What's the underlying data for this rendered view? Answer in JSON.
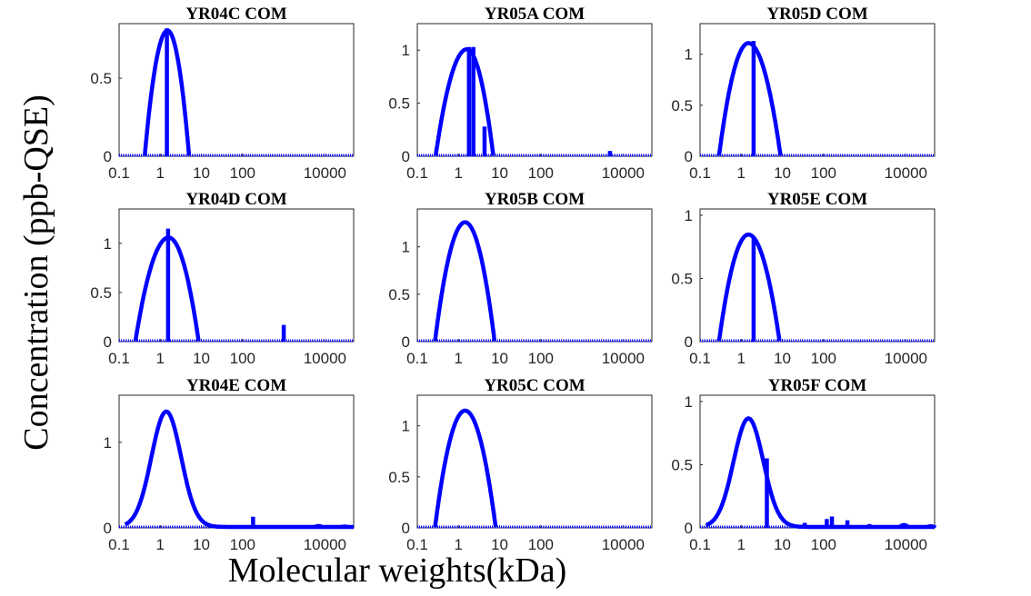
{
  "figure": {
    "ylabel": "Concentration (ppb-QSE)",
    "xlabel": "Molecular weights(kDa)",
    "series_color": "#0000ff"
  },
  "chart_data": [
    {
      "type": "line",
      "title": "YR04C COM",
      "xscale": "log",
      "xlim": [
        0.1,
        50000
      ],
      "xticks": [
        "0.1",
        "1",
        "10",
        "100",
        "10000"
      ],
      "ylim": [
        0,
        0.85
      ],
      "yticks": [
        {
          "v": 0,
          "label": "0"
        },
        {
          "v": 0.5,
          "label": "0.5"
        }
      ],
      "curve": {
        "mode": "quad",
        "peak_x": 1.5,
        "peak_y": 0.8,
        "start_x": 0.42,
        "end_x": 5.0
      },
      "spikes": [
        {
          "x": 1.45,
          "y": 0.82
        }
      ],
      "tail": []
    },
    {
      "type": "line",
      "title": "YR05A COM",
      "xscale": "log",
      "xlim": [
        0.1,
        50000
      ],
      "xticks": [
        "0.1",
        "1",
        "10",
        "100",
        "10000"
      ],
      "ylim": [
        0,
        1.25
      ],
      "yticks": [
        {
          "v": 0,
          "label": "0"
        },
        {
          "v": 0.5,
          "label": "0.5"
        },
        {
          "v": 1,
          "label": "1"
        }
      ],
      "curve": {
        "mode": "quad",
        "peak_x": 1.6,
        "peak_y": 1.0,
        "start_x": 0.28,
        "end_x": 7.0
      },
      "spikes": [
        {
          "x": 1.8,
          "y": 1.03
        },
        {
          "x": 2.3,
          "y": 1.03
        },
        {
          "x": 4.3,
          "y": 0.28
        },
        {
          "x": 4800,
          "y": 0.05
        }
      ],
      "tail": []
    },
    {
      "type": "line",
      "title": "YR05D COM",
      "xscale": "log",
      "xlim": [
        0.1,
        50000
      ],
      "xticks": [
        "0.1",
        "1",
        "10",
        "100",
        "10000"
      ],
      "ylim": [
        0,
        1.3
      ],
      "yticks": [
        {
          "v": 0,
          "label": "0"
        },
        {
          "v": 0.5,
          "label": "0.5"
        },
        {
          "v": 1,
          "label": "1"
        }
      ],
      "curve": {
        "mode": "quad",
        "peak_x": 1.5,
        "peak_y": 1.1,
        "start_x": 0.29,
        "end_x": 9.0
      },
      "spikes": [
        {
          "x": 2.0,
          "y": 1.13
        }
      ],
      "tail": []
    },
    {
      "type": "line",
      "title": "YR04D COM",
      "xscale": "log",
      "xlim": [
        0.1,
        50000
      ],
      "xticks": [
        "0.1",
        "1",
        "10",
        "100",
        "10000"
      ],
      "ylim": [
        0,
        1.35
      ],
      "yticks": [
        {
          "v": 0,
          "label": "0"
        },
        {
          "v": 0.5,
          "label": "0.5"
        },
        {
          "v": 1,
          "label": "1"
        }
      ],
      "curve": {
        "mode": "quad",
        "peak_x": 1.6,
        "peak_y": 1.05,
        "start_x": 0.25,
        "end_x": 8.5
      },
      "spikes": [
        {
          "x": 1.55,
          "y": 1.15
        },
        {
          "x": 1000,
          "y": 0.17
        }
      ],
      "tail": []
    },
    {
      "type": "line",
      "title": "YR05B COM",
      "xscale": "log",
      "xlim": [
        0.1,
        50000
      ],
      "xticks": [
        "0.1",
        "1",
        "10",
        "100",
        "10000"
      ],
      "ylim": [
        0,
        1.4
      ],
      "yticks": [
        {
          "v": 0,
          "label": "0"
        },
        {
          "v": 0.5,
          "label": "0.5"
        },
        {
          "v": 1,
          "label": "1"
        }
      ],
      "curve": {
        "mode": "quad",
        "peak_x": 1.45,
        "peak_y": 1.25,
        "start_x": 0.27,
        "end_x": 7.5
      },
      "spikes": [],
      "tail": []
    },
    {
      "type": "line",
      "title": "YR05E COM",
      "xscale": "log",
      "xlim": [
        0.1,
        50000
      ],
      "xticks": [
        "0.1",
        "1",
        "10",
        "100",
        "10000"
      ],
      "ylim": [
        0,
        1.05
      ],
      "yticks": [
        {
          "v": 0,
          "label": "0"
        },
        {
          "v": 0.5,
          "label": "0.5"
        },
        {
          "v": 1,
          "label": "1"
        }
      ],
      "curve": {
        "mode": "quad",
        "peak_x": 1.5,
        "peak_y": 0.84,
        "start_x": 0.29,
        "end_x": 8.5
      },
      "spikes": [
        {
          "x": 2.0,
          "y": 0.82
        }
      ],
      "tail": []
    },
    {
      "type": "line",
      "title": "YR04E COM",
      "xscale": "log",
      "xlim": [
        0.1,
        50000
      ],
      "xticks": [
        "0.1",
        "1",
        "10",
        "100",
        "10000"
      ],
      "ylim": [
        0,
        1.55
      ],
      "yticks": [
        {
          "v": 0,
          "label": "0"
        },
        {
          "v": 1,
          "label": "1"
        }
      ],
      "curve": {
        "mode": "gauss",
        "peak_x": 1.4,
        "peak_y": 1.35,
        "sigma": 0.36,
        "start_x": 0.14,
        "end_x": 50000
      },
      "spikes": [
        {
          "x": 180,
          "y": 0.13
        }
      ],
      "tail": [
        {
          "x": 7000,
          "y": 0.02
        },
        {
          "x": 30000,
          "y": 0.01
        }
      ]
    },
    {
      "type": "line",
      "title": "YR05C COM",
      "xscale": "log",
      "xlim": [
        0.1,
        50000
      ],
      "xticks": [
        "0.1",
        "1",
        "10",
        "100",
        "10000"
      ],
      "ylim": [
        0,
        1.3
      ],
      "yticks": [
        {
          "v": 0,
          "label": "0"
        },
        {
          "v": 0.5,
          "label": "0.5"
        },
        {
          "v": 1,
          "label": "1"
        }
      ],
      "curve": {
        "mode": "quad",
        "peak_x": 1.45,
        "peak_y": 1.14,
        "start_x": 0.27,
        "end_x": 8.0
      },
      "spikes": [],
      "tail": []
    },
    {
      "type": "line",
      "title": "YR05F COM",
      "xscale": "log",
      "xlim": [
        0.1,
        50000
      ],
      "xticks": [
        "0.1",
        "1",
        "10",
        "100",
        "10000"
      ],
      "ylim": [
        0,
        1.05
      ],
      "yticks": [
        {
          "v": 0,
          "label": "0"
        },
        {
          "v": 0.5,
          "label": "0.5"
        },
        {
          "v": 1,
          "label": "1"
        }
      ],
      "curve": {
        "mode": "gauss",
        "peak_x": 1.5,
        "peak_y": 0.86,
        "sigma": 0.36,
        "start_x": 0.14,
        "end_x": 50000
      },
      "spikes": [
        {
          "x": 4.2,
          "y": 0.55
        },
        {
          "x": 35,
          "y": 0.04
        },
        {
          "x": 120,
          "y": 0.07
        },
        {
          "x": 160,
          "y": 0.09
        },
        {
          "x": 380,
          "y": 0.06
        },
        {
          "x": 1300,
          "y": 0.03
        }
      ],
      "tail": [
        {
          "x": 9000,
          "y": 0.03
        },
        {
          "x": 40000,
          "y": 0.01
        }
      ]
    }
  ]
}
